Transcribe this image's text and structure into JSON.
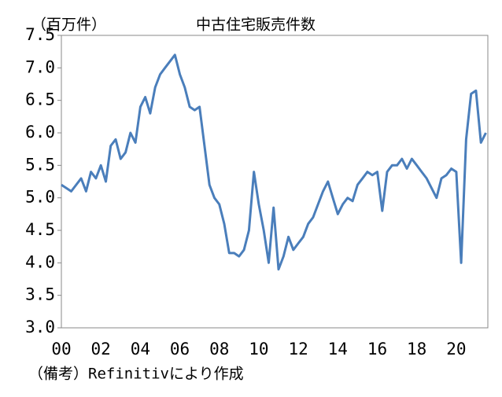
{
  "chart_data": {
    "type": "line",
    "title": "中古住宅販売件数",
    "y_unit": "（百万件）",
    "note": "（備考）Refinitivにより作成",
    "x": [
      2000,
      2000.25,
      2000.5,
      2000.75,
      2001,
      2001.25,
      2001.5,
      2001.75,
      2002,
      2002.25,
      2002.5,
      2002.75,
      2003,
      2003.25,
      2003.5,
      2003.75,
      2004,
      2004.25,
      2004.5,
      2004.75,
      2005,
      2005.25,
      2005.5,
      2005.75,
      2006,
      2006.25,
      2006.5,
      2006.75,
      2007,
      2007.25,
      2007.5,
      2007.75,
      2008,
      2008.25,
      2008.5,
      2008.75,
      2009,
      2009.25,
      2009.5,
      2009.75,
      2010,
      2010.25,
      2010.5,
      2010.75,
      2011,
      2011.25,
      2011.5,
      2011.75,
      2012,
      2012.25,
      2012.5,
      2012.75,
      2013,
      2013.25,
      2013.5,
      2013.75,
      2014,
      2014.25,
      2014.5,
      2014.75,
      2015,
      2015.25,
      2015.5,
      2015.75,
      2016,
      2016.25,
      2016.5,
      2016.75,
      2017,
      2017.25,
      2017.5,
      2017.75,
      2018,
      2018.25,
      2018.5,
      2018.75,
      2019,
      2019.25,
      2019.5,
      2019.75,
      2020,
      2020.25,
      2020.5,
      2020.75,
      2021,
      2021.25,
      2021.5
    ],
    "series": [
      {
        "name": "中古住宅販売件数",
        "color": "#4a7ebb",
        "values": [
          5.2,
          5.15,
          5.1,
          5.2,
          5.3,
          5.1,
          5.4,
          5.3,
          5.5,
          5.25,
          5.8,
          5.9,
          5.6,
          5.7,
          6.0,
          5.85,
          6.4,
          6.55,
          6.3,
          6.7,
          6.9,
          7.0,
          7.1,
          7.2,
          6.9,
          6.7,
          6.4,
          6.35,
          6.4,
          5.8,
          5.2,
          5.0,
          4.9,
          4.6,
          4.15,
          4.15,
          4.1,
          4.2,
          4.5,
          5.4,
          4.9,
          4.5,
          4.0,
          4.85,
          3.9,
          4.1,
          4.4,
          4.2,
          4.3,
          4.4,
          4.6,
          4.7,
          4.9,
          5.1,
          5.25,
          5.0,
          4.75,
          4.9,
          5.0,
          4.95,
          5.2,
          5.3,
          5.4,
          5.35,
          5.4,
          4.8,
          5.4,
          5.5,
          5.5,
          5.6,
          5.45,
          5.6,
          5.5,
          5.4,
          5.3,
          5.15,
          5.0,
          5.3,
          5.35,
          5.45,
          5.4,
          4.0,
          5.9,
          6.6,
          6.65,
          5.85,
          6.0
        ]
      }
    ],
    "xlim": [
      2000,
      2021.6
    ],
    "xticks": [
      {
        "value": 2000,
        "label": "00"
      },
      {
        "value": 2002,
        "label": "02"
      },
      {
        "value": 2004,
        "label": "04"
      },
      {
        "value": 2006,
        "label": "06"
      },
      {
        "value": 2008,
        "label": "08"
      },
      {
        "value": 2010,
        "label": "10"
      },
      {
        "value": 2012,
        "label": "12"
      },
      {
        "value": 2014,
        "label": "14"
      },
      {
        "value": 2016,
        "label": "16"
      },
      {
        "value": 2018,
        "label": "18"
      },
      {
        "value": 2020,
        "label": "20"
      }
    ],
    "ylim": [
      3.0,
      7.5
    ],
    "yticks": [
      {
        "value": 3.0,
        "label": "3.0"
      },
      3.5,
      {
        "value": 4.0,
        "label": "4.0"
      },
      4.5,
      {
        "value": 5.0,
        "label": "5.0"
      },
      5.5,
      {
        "value": 6.0,
        "label": "6.0"
      },
      6.5,
      {
        "value": 7.0,
        "label": "7.0"
      },
      7.5
    ]
  }
}
